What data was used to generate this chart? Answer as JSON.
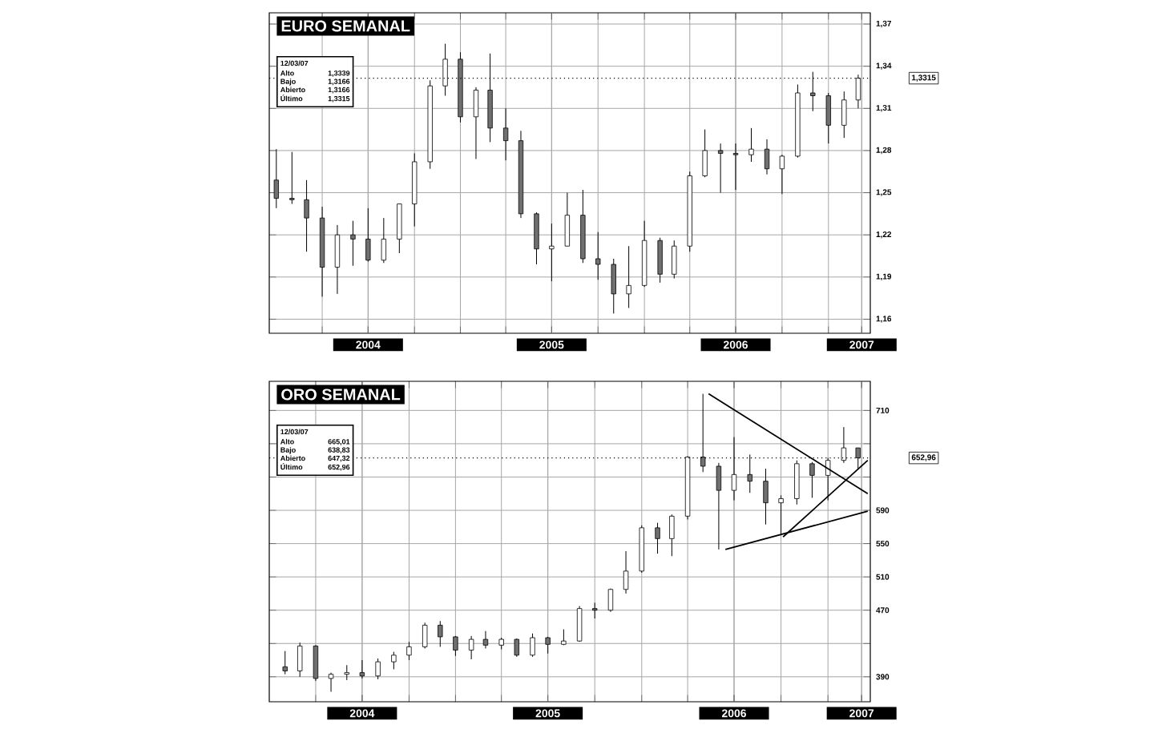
{
  "chart_data": [
    {
      "type": "candlestick",
      "title": "EURO SEMANAL",
      "colors": [
        "#707070",
        "#707070",
        "#707070",
        "#707070",
        "#ffffff",
        "#707070",
        "#707070",
        "#ffffff",
        "#ffffff",
        "#ffffff",
        "#ffffff",
        "#ffffff",
        "#707070",
        "#ffffff",
        "#707070",
        "#707070",
        "#707070",
        "#707070",
        "#ffffff",
        "#ffffff",
        "#707070",
        "#707070",
        "#707070",
        "#ffffff",
        "#ffffff",
        "#707070",
        "#ffffff",
        "#ffffff",
        "#ffffff",
        "#707070",
        "#707070",
        "#ffffff",
        "#707070",
        "#ffffff",
        "#ffffff",
        "#707070",
        "#707070",
        "#ffffff",
        "#ffffff"
      ],
      "annotations": [
        "12/03/07",
        "Alto",
        "1,3339",
        "Bajo",
        "1,3166",
        "Abierto",
        "1,3166",
        "Último",
        "1,3315"
      ],
      "x": [
        "2004-01",
        "2004-02",
        "2004-03",
        "2004-04",
        "2004-05",
        "2004-06",
        "2004-07",
        "2004-08",
        "2004-09",
        "2004-10",
        "2004-11",
        "2004-12",
        "2005-01",
        "2005-02",
        "2005-03",
        "2005-04",
        "2005-05",
        "2005-06",
        "2005-07",
        "2005-08",
        "2005-09",
        "2005-10",
        "2005-11",
        "2005-12",
        "2006-01",
        "2006-02",
        "2006-03",
        "2006-04",
        "2006-05",
        "2006-06",
        "2006-07",
        "2006-08",
        "2006-09",
        "2006-10",
        "2006-11",
        "2006-12",
        "2007-01",
        "2007-02",
        "2007-03"
      ],
      "ohlc": [
        [
          1.259,
          1.281,
          1.239,
          1.246
        ],
        [
          1.246,
          1.279,
          1.242,
          1.245
        ],
        [
          1.245,
          1.259,
          1.208,
          1.232
        ],
        [
          1.232,
          1.24,
          1.176,
          1.197
        ],
        [
          1.197,
          1.227,
          1.178,
          1.22
        ],
        [
          1.22,
          1.23,
          1.198,
          1.217
        ],
        [
          1.217,
          1.239,
          1.201,
          1.202
        ],
        [
          1.202,
          1.232,
          1.2,
          1.217
        ],
        [
          1.217,
          1.242,
          1.207,
          1.242
        ],
        [
          1.242,
          1.278,
          1.226,
          1.272
        ],
        [
          1.272,
          1.33,
          1.267,
          1.326
        ],
        [
          1.326,
          1.356,
          1.319,
          1.345
        ],
        [
          1.345,
          1.35,
          1.3,
          1.304
        ],
        [
          1.304,
          1.325,
          1.274,
          1.323
        ],
        [
          1.323,
          1.349,
          1.286,
          1.296
        ],
        [
          1.296,
          1.31,
          1.273,
          1.287
        ],
        [
          1.287,
          1.294,
          1.232,
          1.235
        ],
        [
          1.235,
          1.236,
          1.199,
          1.21
        ],
        [
          1.21,
          1.228,
          1.187,
          1.212
        ],
        [
          1.212,
          1.25,
          1.212,
          1.234
        ],
        [
          1.234,
          1.252,
          1.2,
          1.203
        ],
        [
          1.203,
          1.222,
          1.188,
          1.199
        ],
        [
          1.199,
          1.203,
          1.164,
          1.178
        ],
        [
          1.178,
          1.212,
          1.168,
          1.184
        ],
        [
          1.184,
          1.23,
          1.183,
          1.216
        ],
        [
          1.216,
          1.218,
          1.186,
          1.192
        ],
        [
          1.192,
          1.216,
          1.189,
          1.212
        ],
        [
          1.212,
          1.265,
          1.208,
          1.262
        ],
        [
          1.262,
          1.295,
          1.261,
          1.28
        ],
        [
          1.28,
          1.285,
          1.25,
          1.278
        ],
        [
          1.278,
          1.285,
          1.252,
          1.277
        ],
        [
          1.277,
          1.296,
          1.272,
          1.281
        ],
        [
          1.281,
          1.288,
          1.263,
          1.267
        ],
        [
          1.267,
          1.277,
          1.249,
          1.276
        ],
        [
          1.276,
          1.327,
          1.275,
          1.321
        ],
        [
          1.321,
          1.336,
          1.308,
          1.319
        ],
        [
          1.319,
          1.321,
          1.285,
          1.298
        ],
        [
          1.298,
          1.322,
          1.289,
          1.316
        ],
        [
          1.316,
          1.334,
          1.31,
          1.3315
        ]
      ],
      "xlim": [
        "2003-12-18",
        "2007-03-25"
      ],
      "xticks": [
        {
          "value": "2004-04-01",
          "label": null
        },
        {
          "value": "2004-07-01",
          "label": "2004"
        },
        {
          "value": "2004-10-01",
          "label": null
        },
        {
          "value": "2005-01-01",
          "label": null
        },
        {
          "value": "2005-04-01",
          "label": null
        },
        {
          "value": "2005-07-01",
          "label": "2005"
        },
        {
          "value": "2005-10-01",
          "label": null
        },
        {
          "value": "2006-01-01",
          "label": null
        },
        {
          "value": "2006-04-01",
          "label": null
        },
        {
          "value": "2006-07-01",
          "label": "2006"
        },
        {
          "value": "2006-10-01",
          "label": null
        },
        {
          "value": "2007-01-01",
          "label": null
        },
        {
          "value": "2007-03-08",
          "label": "2007"
        }
      ],
      "ylim": [
        1.15,
        1.378
      ],
      "yticks": [
        {
          "value": 1.16,
          "label": "1,16"
        },
        {
          "value": 1.19,
          "label": "1,19"
        },
        {
          "value": 1.22,
          "label": "1,22"
        },
        {
          "value": 1.25,
          "label": "1,25"
        },
        {
          "value": 1.28,
          "label": "1,28"
        },
        {
          "value": 1.31,
          "label": "1,31"
        },
        {
          "value": 1.34,
          "label": "1,34"
        },
        {
          "value": 1.37,
          "label": "1,37"
        }
      ],
      "ref_lines": [
        {
          "axis": "y",
          "value": 1.3315,
          "label": "1,3315",
          "line_style": "dotted"
        }
      ],
      "grid": true
    },
    {
      "type": "candlestick",
      "title": "ORO SEMANAL",
      "colors": [
        "#707070",
        "#ffffff",
        "#707070",
        "#ffffff",
        "#ffffff",
        "#707070",
        "#ffffff",
        "#ffffff",
        "#ffffff",
        "#ffffff",
        "#707070",
        "#707070",
        "#ffffff",
        "#707070",
        "#ffffff",
        "#707070",
        "#ffffff",
        "#707070",
        "#ffffff",
        "#ffffff",
        "#707070",
        "#ffffff",
        "#ffffff",
        "#ffffff",
        "#707070",
        "#ffffff",
        "#ffffff",
        "#707070",
        "#707070",
        "#ffffff",
        "#707070",
        "#707070",
        "#ffffff",
        "#ffffff",
        "#707070",
        "#ffffff",
        "#ffffff",
        "#707070"
      ],
      "annotations": [
        "12/03/07",
        "Alto",
        "665,01",
        "Bajo",
        "638,83",
        "Abierto",
        "647,32",
        "Último",
        "652,96"
      ],
      "x": [
        "2004-02",
        "2004-03",
        "2004-04",
        "2004-05",
        "2004-06",
        "2004-07",
        "2004-08",
        "2004-09",
        "2004-10",
        "2004-11",
        "2004-12",
        "2005-01",
        "2005-02",
        "2005-03",
        "2005-04",
        "2005-05",
        "2005-06",
        "2005-07",
        "2005-08",
        "2005-09",
        "2005-10",
        "2005-11",
        "2005-12",
        "2006-01",
        "2006-02",
        "2006-03",
        "2006-04",
        "2006-05",
        "2006-06",
        "2006-07",
        "2006-08",
        "2006-09",
        "2006-10",
        "2006-11",
        "2006-12",
        "2007-01",
        "2007-02",
        "2007-03"
      ],
      "ohlc": [
        [
          402,
          421,
          393,
          397
        ],
        [
          397,
          431,
          390,
          427
        ],
        [
          427,
          428,
          385,
          388
        ],
        [
          388,
          395,
          372,
          393
        ],
        [
          393,
          404,
          386,
          395
        ],
        [
          395,
          410,
          388,
          391
        ],
        [
          391,
          412,
          387,
          408
        ],
        [
          408,
          420,
          399,
          416
        ],
        [
          416,
          432,
          410,
          426
        ],
        [
          426,
          455,
          424,
          452
        ],
        [
          452,
          457,
          426,
          438
        ],
        [
          438,
          439,
          415,
          422
        ],
        [
          422,
          439,
          411,
          435
        ],
        [
          435,
          445,
          424,
          428
        ],
        [
          428,
          437,
          423,
          435
        ],
        [
          435,
          436,
          414,
          416
        ],
        [
          416,
          442,
          414,
          437
        ],
        [
          437,
          438,
          418,
          429
        ],
        [
          429,
          447,
          428,
          433
        ],
        [
          433,
          475,
          432,
          472
        ],
        [
          472,
          479,
          460,
          470
        ],
        [
          470,
          496,
          468,
          495
        ],
        [
          495,
          541,
          490,
          517
        ],
        [
          517,
          572,
          515,
          569
        ],
        [
          569,
          575,
          538,
          556
        ],
        [
          556,
          585,
          535,
          583
        ],
        [
          583,
          655,
          579,
          654
        ],
        [
          654,
          730,
          636,
          643
        ],
        [
          643,
          647,
          543,
          614
        ],
        [
          614,
          678,
          602,
          633
        ],
        [
          633,
          657,
          611,
          625
        ],
        [
          625,
          640,
          573,
          599
        ],
        [
          599,
          608,
          560,
          604
        ],
        [
          604,
          650,
          597,
          646
        ],
        [
          646,
          648,
          605,
          632
        ],
        [
          632,
          653,
          602,
          650
        ],
        [
          650,
          690,
          647,
          665
        ],
        [
          665,
          665,
          639,
          653
        ]
      ],
      "series": [
        {
          "type": "line",
          "color": "#000000",
          "x": [
            "2006-05-12",
            "2007-03-20"
          ],
          "values": [
            730,
            610
          ]
        },
        {
          "type": "line",
          "color": "#000000",
          "x": [
            "2006-06-14",
            "2007-03-20"
          ],
          "values": [
            543,
            589
          ]
        },
        {
          "type": "line",
          "color": "#000000",
          "x": [
            "2006-10-05",
            "2007-03-20"
          ],
          "values": [
            558,
            650
          ]
        }
      ],
      "xlim": [
        "2004-01-01",
        "2007-03-25"
      ],
      "xticks": [
        {
          "value": "2004-04-01",
          "label": null
        },
        {
          "value": "2004-07-01",
          "label": "2004"
        },
        {
          "value": "2004-10-01",
          "label": null
        },
        {
          "value": "2005-01-01",
          "label": null
        },
        {
          "value": "2005-04-01",
          "label": null
        },
        {
          "value": "2005-07-01",
          "label": "2005"
        },
        {
          "value": "2005-10-01",
          "label": null
        },
        {
          "value": "2006-01-01",
          "label": null
        },
        {
          "value": "2006-04-01",
          "label": null
        },
        {
          "value": "2006-07-01",
          "label": "2006"
        },
        {
          "value": "2006-10-01",
          "label": null
        },
        {
          "value": "2007-01-01",
          "label": null
        },
        {
          "value": "2007-03-08",
          "label": "2007"
        }
      ],
      "ylim": [
        360,
        745
      ],
      "yticks": [
        {
          "value": 390,
          "label": "390"
        },
        {
          "value": 430,
          "label": null
        },
        {
          "value": 470,
          "label": "470"
        },
        {
          "value": 510,
          "label": "510"
        },
        {
          "value": 550,
          "label": "550"
        },
        {
          "value": 590,
          "label": "590"
        },
        {
          "value": 630,
          "label": null
        },
        {
          "value": 670,
          "label": null
        },
        {
          "value": 710,
          "label": "710"
        }
      ],
      "ref_lines": [
        {
          "axis": "y",
          "value": 652.96,
          "label": "652,96",
          "line_style": "dotted"
        }
      ],
      "grid": true,
      "marker": "none",
      "line_style": "solid"
    }
  ]
}
